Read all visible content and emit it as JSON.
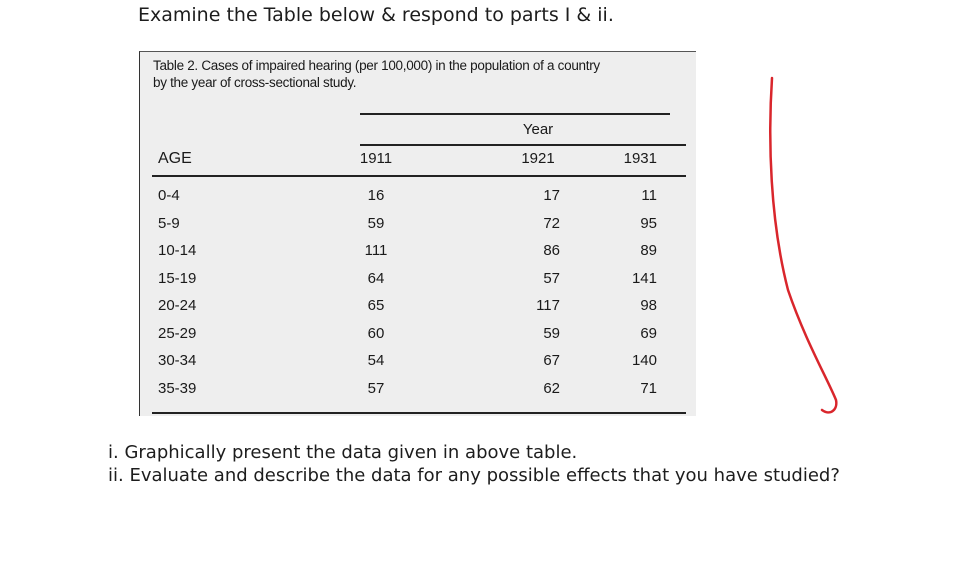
{
  "instruction": "Examine the Table below & respond to parts I & ii.",
  "table": {
    "caption_line1": "Table 2. Cases of impaired hearing (per 100,000) in the population  of a country",
    "caption_line2": "by the year of cross-sectional  study.",
    "year_header": "Year",
    "columns": [
      "AGE",
      "1911",
      "1921",
      "1931"
    ],
    "rows": [
      {
        "age": "0-4",
        "y1911": "16",
        "y1921": "17",
        "y1931": "11"
      },
      {
        "age": "5-9",
        "y1911": "59",
        "y1921": "72",
        "y1931": "95"
      },
      {
        "age": "10-14",
        "y1911": "111",
        "y1921": "86",
        "y1931": "89"
      },
      {
        "age": "15-19",
        "y1911": "64",
        "y1921": "57",
        "y1931": "141"
      },
      {
        "age": "20-24",
        "y1911": "65",
        "y1921": "117",
        "y1931": "98"
      },
      {
        "age": "25-29",
        "y1911": "60",
        "y1921": "59",
        "y1931": "69"
      },
      {
        "age": "30-34",
        "y1911": "54",
        "y1921": "67",
        "y1931": "140"
      },
      {
        "age": "35-39",
        "y1911": "57",
        "y1921": "62",
        "y1931": "71"
      }
    ]
  },
  "questions": {
    "q1": "i. Graphically present the data given in above table.",
    "q2": "ii. Evaluate and describe the data for any possible effects that you have studied?"
  },
  "colors": {
    "annotation": "#d9262c",
    "table_background": "#eeeeee"
  }
}
